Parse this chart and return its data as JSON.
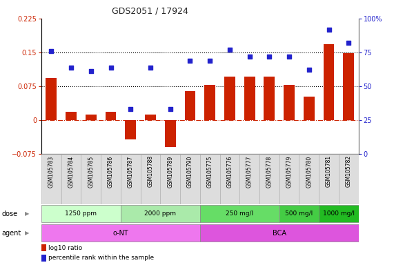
{
  "title": "GDS2051 / 17924",
  "samples": [
    "GSM105783",
    "GSM105784",
    "GSM105785",
    "GSM105786",
    "GSM105787",
    "GSM105788",
    "GSM105789",
    "GSM105790",
    "GSM105775",
    "GSM105776",
    "GSM105777",
    "GSM105778",
    "GSM105779",
    "GSM105780",
    "GSM105781",
    "GSM105782"
  ],
  "log10_ratio": [
    0.093,
    0.018,
    0.012,
    0.018,
    -0.042,
    0.012,
    -0.06,
    0.065,
    0.078,
    0.096,
    0.096,
    0.096,
    0.078,
    0.052,
    0.168,
    0.148
  ],
  "percentile": [
    76,
    64,
    61,
    64,
    33,
    64,
    33,
    69,
    69,
    77,
    72,
    72,
    72,
    62,
    92,
    82
  ],
  "dose_groups": [
    {
      "label": "1250 ppm",
      "start": 0,
      "end": 4,
      "color": "#ccffcc"
    },
    {
      "label": "2000 ppm",
      "start": 4,
      "end": 8,
      "color": "#aaeaaa"
    },
    {
      "label": "250 mg/l",
      "start": 8,
      "end": 12,
      "color": "#66dd66"
    },
    {
      "label": "500 mg/l",
      "start": 12,
      "end": 14,
      "color": "#44cc44"
    },
    {
      "label": "1000 mg/l",
      "start": 14,
      "end": 16,
      "color": "#22bb22"
    }
  ],
  "agent_groups": [
    {
      "label": "o-NT",
      "start": 0,
      "end": 8,
      "color": "#ee77ee"
    },
    {
      "label": "BCA",
      "start": 8,
      "end": 16,
      "color": "#dd55dd"
    }
  ],
  "bar_color": "#cc2200",
  "dot_color": "#2222cc",
  "ylim_left": [
    -0.075,
    0.225
  ],
  "ylim_right": [
    0,
    100
  ],
  "yticks_left": [
    -0.075,
    0,
    0.075,
    0.15,
    0.225
  ],
  "yticks_right": [
    0,
    25,
    50,
    75,
    100
  ],
  "hlines": [
    0.075,
    0.15
  ],
  "zero_dash_color": "#cc2200",
  "bg_color": "#ffffff",
  "label_box_color": "#dddddd",
  "label_box_edge": "#aaaaaa"
}
